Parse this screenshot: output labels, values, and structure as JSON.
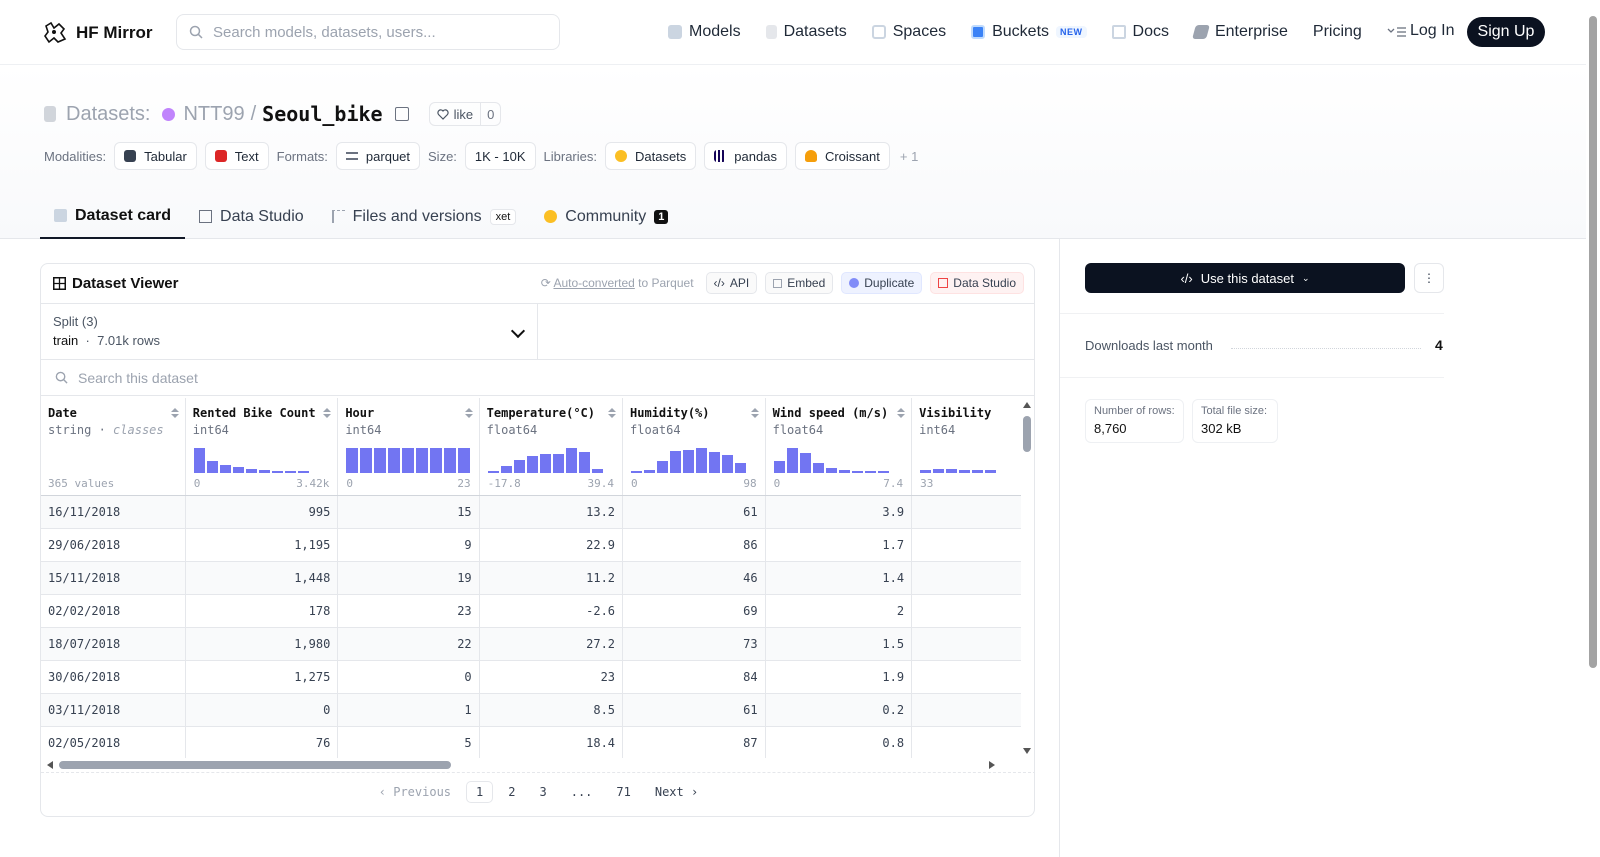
{
  "nav": {
    "logo": "HF Mirror",
    "search_placeholder": "Search models, datasets, users...",
    "links": [
      {
        "label": "Models",
        "icon": "cube-icon"
      },
      {
        "label": "Datasets",
        "icon": "database-icon"
      },
      {
        "label": "Spaces",
        "icon": "grid-icon"
      },
      {
        "label": "Buckets",
        "icon": "bucket-icon",
        "badge": "NEW"
      },
      {
        "label": "Docs",
        "icon": "book-icon"
      },
      {
        "label": "Enterprise",
        "icon": "enterprise-icon"
      },
      {
        "label": "Pricing"
      }
    ],
    "login": "Log In",
    "signup": "Sign Up"
  },
  "dataset": {
    "prefix": "Datasets:",
    "org": "NTT99",
    "slash": "/",
    "name": "Seoul_bike",
    "like": "like",
    "like_count": "0"
  },
  "tags": {
    "modalities_label": "Modalities:",
    "modalities": [
      "Tabular",
      "Text"
    ],
    "formats_label": "Formats:",
    "formats": [
      "parquet"
    ],
    "size_label": "Size:",
    "size": "1K - 10K",
    "libraries_label": "Libraries:",
    "libraries": [
      "Datasets",
      "pandas",
      "Croissant"
    ],
    "more": "+ 1"
  },
  "tabs": [
    {
      "label": "Dataset card"
    },
    {
      "label": "Data Studio"
    },
    {
      "label": "Files and versions",
      "badge": "xet"
    },
    {
      "label": "Community",
      "count": "1"
    }
  ],
  "viewer": {
    "title": "Dataset Viewer",
    "auto_converted_link": "Auto-converted",
    "auto_converted_rest": " to Parquet",
    "actions": [
      "API",
      "Embed",
      "Duplicate",
      "Data Studio"
    ],
    "split_label": "Split (3)",
    "split_value": "train",
    "split_rows": "7.01k rows",
    "search_placeholder": "Search this dataset",
    "columns": [
      {
        "name": "Date",
        "type": "string",
        "type_extra": "classes",
        "values_label": "365 values"
      },
      {
        "name": "Rented Bike Count",
        "type": "int64",
        "min": "0",
        "max": "3.42k",
        "hist": [
          0.95,
          0.45,
          0.3,
          0.22,
          0.15,
          0.1,
          0.07,
          0.04,
          0.03
        ]
      },
      {
        "name": "Hour",
        "type": "int64",
        "min": "0",
        "max": "23",
        "hist": [
          0.95,
          0.95,
          0.95,
          0.95,
          0.95,
          0.95,
          0.95,
          0.95,
          0.95
        ]
      },
      {
        "name": "Temperature(°C)",
        "type": "float64",
        "min": "-17.8",
        "max": "39.4",
        "hist": [
          0.08,
          0.25,
          0.5,
          0.65,
          0.72,
          0.72,
          0.95,
          0.8,
          0.15
        ]
      },
      {
        "name": "Humidity(%)",
        "type": "float64",
        "min": "0",
        "max": "98",
        "hist": [
          0.05,
          0.1,
          0.45,
          0.85,
          0.9,
          0.95,
          0.8,
          0.7,
          0.4
        ]
      },
      {
        "name": "Wind speed (m/s)",
        "type": "float64",
        "min": "0",
        "max": "7.4",
        "hist": [
          0.45,
          0.95,
          0.75,
          0.4,
          0.2,
          0.1,
          0.05,
          0.03,
          0.02
        ]
      },
      {
        "name": "Visibility",
        "type": "int64",
        "min": "33",
        "max": "",
        "hist": [
          0.1,
          0.15,
          0.15,
          0.13,
          0.13,
          0.13
        ]
      }
    ],
    "rows": [
      [
        "16/11/2018",
        "995",
        "15",
        "13.2",
        "61",
        "3.9",
        ""
      ],
      [
        "29/06/2018",
        "1,195",
        "9",
        "22.9",
        "86",
        "1.7",
        ""
      ],
      [
        "15/11/2018",
        "1,448",
        "19",
        "11.2",
        "46",
        "1.4",
        ""
      ],
      [
        "02/02/2018",
        "178",
        "23",
        "-2.6",
        "69",
        "2",
        ""
      ],
      [
        "18/07/2018",
        "1,980",
        "22",
        "27.2",
        "73",
        "1.5",
        ""
      ],
      [
        "30/06/2018",
        "1,275",
        "0",
        "23",
        "84",
        "1.9",
        ""
      ],
      [
        "03/11/2018",
        "0",
        "1",
        "8.5",
        "61",
        "0.2",
        ""
      ],
      [
        "02/05/2018",
        "76",
        "5",
        "18.4",
        "87",
        "0.8",
        ""
      ]
    ],
    "pager": {
      "prev": "Previous",
      "pages": [
        "1",
        "2",
        "3",
        "...",
        "71"
      ],
      "next": "Next"
    }
  },
  "side": {
    "use_button": "Use this dataset",
    "downloads_label": "Downloads last month",
    "downloads_value": "4",
    "rows_label": "Number of rows:",
    "rows_value": "8,760",
    "size_label": "Total file size:",
    "size_value": "302 kB"
  }
}
